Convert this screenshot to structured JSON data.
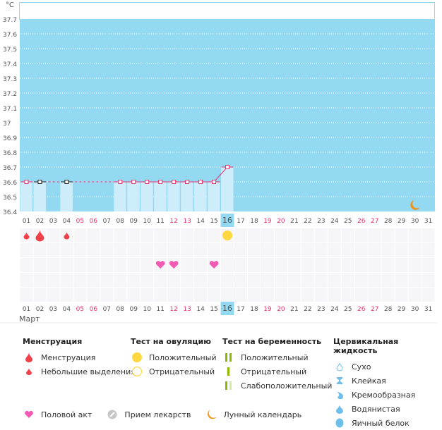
{
  "chart_data": {
    "type": "line",
    "title": "",
    "unit_label": "°C",
    "month_label": "Март",
    "ylim": [
      36.4,
      37.7
    ],
    "yticks": [
      "37.7",
      "37.6",
      "37.5",
      "37.4",
      "37.3",
      "37.2",
      "37.1",
      "37",
      "36.9",
      "36.8",
      "36.7",
      "36.6",
      "36.5",
      "36.4"
    ],
    "days": [
      "01",
      "02",
      "03",
      "04",
      "05",
      "06",
      "07",
      "08",
      "09",
      "10",
      "11",
      "12",
      "13",
      "14",
      "15",
      "16",
      "17",
      "18",
      "19",
      "20",
      "21",
      "22",
      "23",
      "24",
      "25",
      "26",
      "27",
      "28",
      "29",
      "30",
      "31"
    ],
    "weekend_days": [
      "05",
      "06",
      "12",
      "13",
      "19",
      "20",
      "26",
      "27"
    ],
    "current_day": "16",
    "series": [
      {
        "name": "temperature",
        "points": [
          {
            "day": "01",
            "value": 36.6,
            "excluded": false
          },
          {
            "day": "02",
            "value": 36.6,
            "excluded": true
          },
          {
            "day": "04",
            "value": 36.6,
            "excluded": true
          },
          {
            "day": "08",
            "value": 36.6,
            "excluded": false
          },
          {
            "day": "09",
            "value": 36.6,
            "excluded": false
          },
          {
            "day": "10",
            "value": 36.6,
            "excluded": false
          },
          {
            "day": "11",
            "value": 36.6,
            "excluded": false
          },
          {
            "day": "12",
            "value": 36.6,
            "excluded": false
          },
          {
            "day": "13",
            "value": 36.6,
            "excluded": false
          },
          {
            "day": "14",
            "value": 36.6,
            "excluded": false
          },
          {
            "day": "15",
            "value": 36.6,
            "excluded": false
          },
          {
            "day": "16",
            "value": 36.7,
            "excluded": false
          }
        ]
      }
    ],
    "markers": {
      "menstruation": [
        {
          "day": "01",
          "type": "light"
        },
        {
          "day": "02",
          "type": "heavy"
        },
        {
          "day": "04",
          "type": "light"
        }
      ],
      "ovulation_test": [
        {
          "day": "16",
          "type": "positive"
        }
      ],
      "intercourse": [
        "11",
        "12",
        "15"
      ],
      "moon": [
        "30"
      ]
    }
  },
  "colors": {
    "plot_bg": "#93d9f2",
    "bar": "#cdedfb",
    "line": "#e8336b",
    "drop": "#f0404a",
    "heart": "#f25ab4",
    "sun": "#ffd740",
    "moon": "#f39214",
    "weekend": "#e8336b",
    "pregnancy": "#8cb800",
    "pregnancy_light": "#d4e6a8",
    "fluid": "#6fbfec"
  },
  "legend": {
    "menstruation": {
      "title": "Менструация",
      "items": [
        "Менструация",
        "Небольшие выделения"
      ]
    },
    "ovulation": {
      "title": "Тест на овуляцию",
      "items": [
        "Положительный",
        "Отрицательный"
      ]
    },
    "pregnancy": {
      "title": "Тест на беременность",
      "items": [
        "Положительный",
        "Отрицательный",
        "Слабоположительный"
      ]
    },
    "cervical": {
      "title": "Цервикальная жидкость",
      "items": [
        "Сухо",
        "Клейкая",
        "Кремообразная",
        "Водянистая",
        "Яичный белок"
      ]
    },
    "bottom": [
      "Половой акт",
      "Прием лекарств",
      "Лунный календарь"
    ]
  }
}
